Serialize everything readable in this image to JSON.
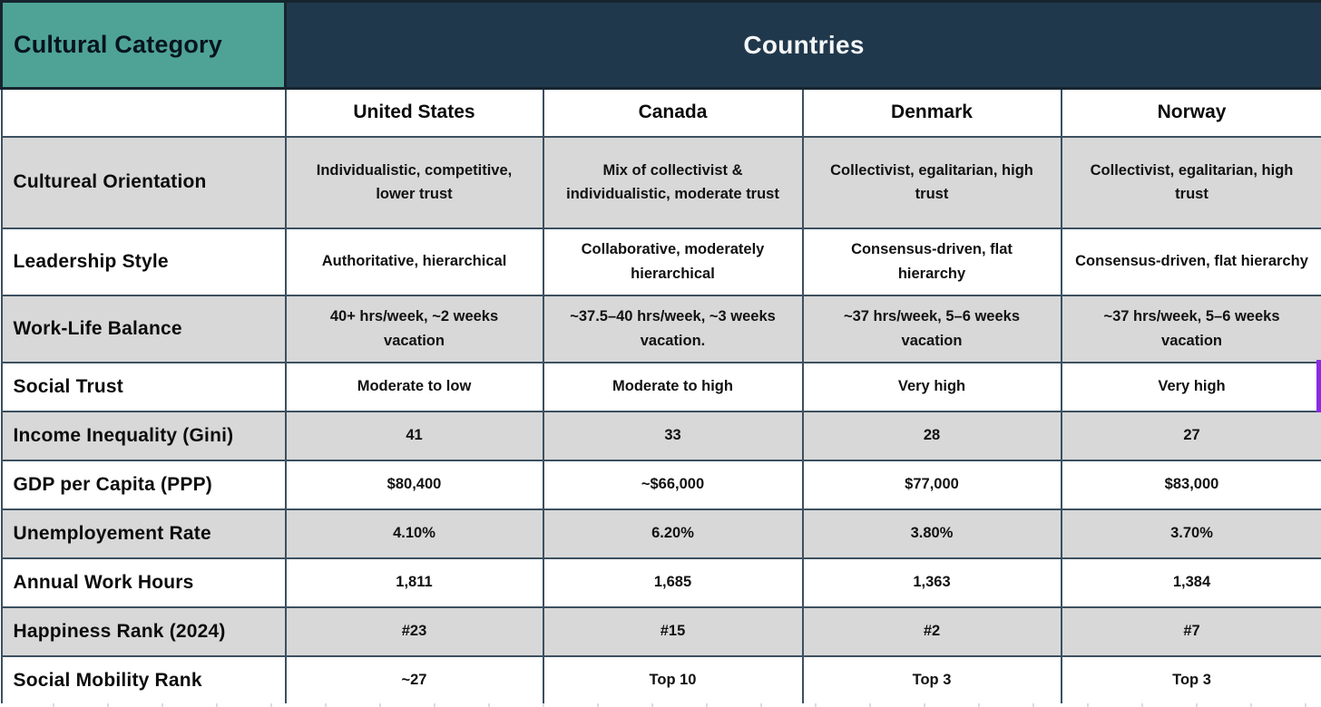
{
  "chart_data": {
    "type": "table",
    "row_header": "Cultural Category",
    "column_group_header": "Countries",
    "columns": [
      "United States",
      "Canada",
      "Denmark",
      "Norway"
    ],
    "rows": [
      {
        "category": "Cultureal Orientation",
        "values": [
          "Individualistic, competitive, lower trust",
          "Mix of collectivist & individualistic, moderate trust",
          "Collectivist, egalitarian, high trust",
          "Collectivist, egalitarian, high trust"
        ]
      },
      {
        "category": "Leadership Style",
        "values": [
          "Authoritative, hierarchical",
          "Collaborative, moderately hierarchical",
          "Consensus-driven, flat hierarchy",
          "Consensus-driven, flat hierarchy"
        ]
      },
      {
        "category": "Work-Life Balance",
        "values": [
          "40+ hrs/week, ~2 weeks vacation",
          "~37.5–40 hrs/week, ~3 weeks vacation.",
          "~37 hrs/week, 5–6 weeks vacation",
          "~37 hrs/week, 5–6 weeks vacation"
        ]
      },
      {
        "category": "Social Trust",
        "values": [
          "Moderate to low",
          "Moderate to high",
          "Very high",
          "Very high"
        ]
      },
      {
        "category": "Income Inequality (Gini)",
        "values": [
          "41",
          "33",
          "28",
          "27"
        ]
      },
      {
        "category": "GDP per Capita (PPP)",
        "values": [
          "$80,400",
          "~$66,000",
          "$77,000",
          "$83,000"
        ]
      },
      {
        "category": "Unemployement Rate",
        "values": [
          "4.10%",
          "6.20%",
          "3.80%",
          "3.70%"
        ]
      },
      {
        "category": "Annual Work Hours",
        "values": [
          "1,811",
          "1,685",
          "1,363",
          "1,384"
        ]
      },
      {
        "category": "Happiness Rank (2024)",
        "values": [
          "#23",
          "#15",
          "#2",
          "#7"
        ]
      },
      {
        "category": "Social Mobility Rank",
        "values": [
          "~27",
          "Top 10",
          "Top 3",
          "Top 3"
        ]
      }
    ]
  },
  "colors": {
    "teal_header": "#4FA396",
    "navy_header": "#20384C",
    "header_border": "#16242E",
    "row_shaded": "#D8D8D8",
    "row_plain": "#FFFFFF",
    "grid_border": "#3C5060",
    "selection_purple": "#8A2BE2"
  }
}
